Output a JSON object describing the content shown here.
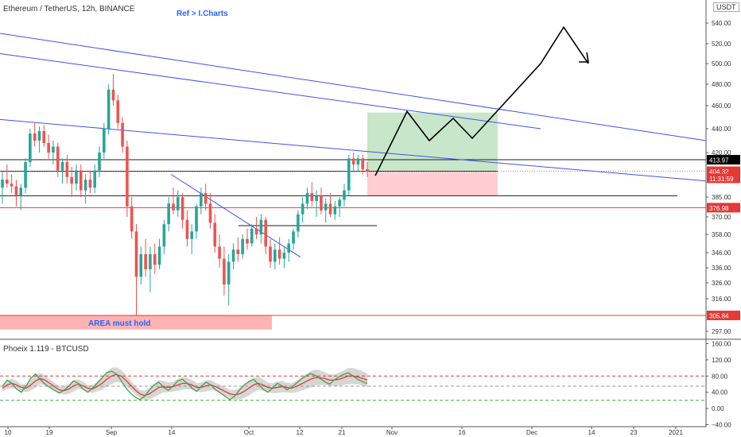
{
  "header": {
    "symbol_title": "Ethereum / TetherUS, 12h, BINANCE",
    "ref_label": "Ref > I.Charts",
    "currency_badge": "USDT"
  },
  "indicator": {
    "title": "Phoeix 1.119 - BTCUSD"
  },
  "colors": {
    "up": "#26a69a",
    "down": "#ef5350",
    "trend": "#3f51f5",
    "hline": "#1e1e1e",
    "red_line": "#e53935",
    "projection": "#000000",
    "target_zone": "#c8e6c9",
    "stop_zone": "#ffcdd2",
    "area_zone": "#ffb3b3",
    "osc_fast": "#43a047",
    "osc_slow": "#e53935",
    "osc_band": "#c8c8c8"
  },
  "chart_data": {
    "type": "candlestick",
    "price_axis": {
      "ticks": [
        540,
        520,
        500,
        480,
        460,
        440,
        420,
        385,
        370,
        358,
        346,
        336,
        326,
        316,
        297
      ],
      "tick_labels": [
        "540.00",
        "520.00",
        "500.00",
        "480.00",
        "460.00",
        "440.00",
        "420.00",
        "385.00",
        "370.00",
        "358.00",
        "346.00",
        "336.00",
        "326.00",
        "316.00",
        "297.00"
      ]
    },
    "time_axis": {
      "labels": [
        "10",
        "19",
        "Sep",
        "14",
        "Oct",
        "12",
        "21",
        "Nov",
        "16",
        "Dec",
        "14",
        "23",
        "2021"
      ]
    },
    "price_badges": [
      {
        "label": "413.97",
        "price": 413.97,
        "style": "black"
      },
      {
        "label": "404.32",
        "price": 404.32,
        "style": "red"
      },
      {
        "label": "11:31:59",
        "price": 399,
        "style": "red"
      },
      {
        "label": "376.98",
        "price": 376.98,
        "style": "red"
      },
      {
        "label": "305.84",
        "price": 305.84,
        "style": "red"
      }
    ],
    "zones": [
      {
        "name": "target",
        "price_top": 454,
        "price_bottom": 404
      },
      {
        "name": "stop",
        "price_top": 404,
        "price_bottom": 386
      },
      {
        "name": "area",
        "price_top": 305.84,
        "price_bottom": 298,
        "label": "AREA must hold"
      }
    ],
    "horizontal_levels": [
      {
        "price": 413.97,
        "color": "black"
      },
      {
        "price": 404.32,
        "color": "black"
      },
      {
        "price": 386,
        "color": "black"
      },
      {
        "price": 376.98,
        "color": "red"
      },
      {
        "price": 364,
        "color": "black"
      },
      {
        "price": 305.84,
        "color": "red"
      }
    ],
    "projection_path_prices": [
      401,
      455,
      430,
      449,
      432,
      500,
      536,
      500
    ],
    "candles": [
      {
        "o": 392,
        "h": 404,
        "l": 380,
        "c": 398
      },
      {
        "o": 398,
        "h": 410,
        "l": 392,
        "c": 395
      },
      {
        "o": 395,
        "h": 402,
        "l": 388,
        "c": 393
      },
      {
        "o": 393,
        "h": 398,
        "l": 378,
        "c": 386
      },
      {
        "o": 386,
        "h": 395,
        "l": 375,
        "c": 392
      },
      {
        "o": 392,
        "h": 415,
        "l": 388,
        "c": 412
      },
      {
        "o": 412,
        "h": 440,
        "l": 408,
        "c": 436
      },
      {
        "o": 436,
        "h": 445,
        "l": 425,
        "c": 430
      },
      {
        "o": 430,
        "h": 442,
        "l": 420,
        "c": 438
      },
      {
        "o": 438,
        "h": 443,
        "l": 425,
        "c": 428
      },
      {
        "o": 428,
        "h": 435,
        "l": 415,
        "c": 420
      },
      {
        "o": 420,
        "h": 430,
        "l": 410,
        "c": 425
      },
      {
        "o": 425,
        "h": 428,
        "l": 400,
        "c": 405
      },
      {
        "o": 405,
        "h": 415,
        "l": 395,
        "c": 412
      },
      {
        "o": 412,
        "h": 418,
        "l": 395,
        "c": 400
      },
      {
        "o": 400,
        "h": 408,
        "l": 385,
        "c": 395
      },
      {
        "o": 395,
        "h": 410,
        "l": 390,
        "c": 405
      },
      {
        "o": 405,
        "h": 410,
        "l": 385,
        "c": 390
      },
      {
        "o": 390,
        "h": 402,
        "l": 380,
        "c": 398
      },
      {
        "o": 398,
        "h": 405,
        "l": 388,
        "c": 392
      },
      {
        "o": 392,
        "h": 410,
        "l": 388,
        "c": 405
      },
      {
        "o": 405,
        "h": 425,
        "l": 400,
        "c": 420
      },
      {
        "o": 420,
        "h": 445,
        "l": 415,
        "c": 440
      },
      {
        "o": 440,
        "h": 480,
        "l": 435,
        "c": 475
      },
      {
        "o": 475,
        "h": 490,
        "l": 460,
        "c": 465
      },
      {
        "o": 465,
        "h": 470,
        "l": 440,
        "c": 445
      },
      {
        "o": 445,
        "h": 450,
        "l": 420,
        "c": 425
      },
      {
        "o": 425,
        "h": 430,
        "l": 370,
        "c": 378
      },
      {
        "o": 378,
        "h": 385,
        "l": 355,
        "c": 360
      },
      {
        "o": 360,
        "h": 365,
        "l": 306,
        "c": 330
      },
      {
        "o": 330,
        "h": 350,
        "l": 325,
        "c": 345
      },
      {
        "o": 345,
        "h": 355,
        "l": 330,
        "c": 335
      },
      {
        "o": 335,
        "h": 350,
        "l": 320,
        "c": 345
      },
      {
        "o": 345,
        "h": 352,
        "l": 332,
        "c": 338
      },
      {
        "o": 338,
        "h": 355,
        "l": 335,
        "c": 350
      },
      {
        "o": 350,
        "h": 368,
        "l": 345,
        "c": 365
      },
      {
        "o": 365,
        "h": 385,
        "l": 360,
        "c": 380
      },
      {
        "o": 380,
        "h": 392,
        "l": 372,
        "c": 375
      },
      {
        "o": 375,
        "h": 390,
        "l": 370,
        "c": 385
      },
      {
        "o": 385,
        "h": 388,
        "l": 362,
        "c": 368
      },
      {
        "o": 368,
        "h": 375,
        "l": 350,
        "c": 355
      },
      {
        "o": 355,
        "h": 365,
        "l": 345,
        "c": 360
      },
      {
        "o": 360,
        "h": 380,
        "l": 355,
        "c": 378
      },
      {
        "o": 378,
        "h": 392,
        "l": 372,
        "c": 388
      },
      {
        "o": 388,
        "h": 395,
        "l": 375,
        "c": 380
      },
      {
        "o": 380,
        "h": 388,
        "l": 362,
        "c": 366
      },
      {
        "o": 366,
        "h": 372,
        "l": 346,
        "c": 350
      },
      {
        "o": 350,
        "h": 358,
        "l": 336,
        "c": 342
      },
      {
        "o": 342,
        "h": 350,
        "l": 318,
        "c": 325
      },
      {
        "o": 325,
        "h": 345,
        "l": 312,
        "c": 340
      },
      {
        "o": 340,
        "h": 352,
        "l": 335,
        "c": 348
      },
      {
        "o": 348,
        "h": 356,
        "l": 340,
        "c": 345
      },
      {
        "o": 345,
        "h": 358,
        "l": 342,
        "c": 355
      },
      {
        "o": 355,
        "h": 362,
        "l": 348,
        "c": 352
      },
      {
        "o": 352,
        "h": 365,
        "l": 350,
        "c": 362
      },
      {
        "o": 362,
        "h": 370,
        "l": 355,
        "c": 358
      },
      {
        "o": 358,
        "h": 372,
        "l": 352,
        "c": 368
      },
      {
        "o": 368,
        "h": 370,
        "l": 345,
        "c": 350
      },
      {
        "o": 350,
        "h": 355,
        "l": 336,
        "c": 340
      },
      {
        "o": 340,
        "h": 352,
        "l": 335,
        "c": 348
      },
      {
        "o": 348,
        "h": 356,
        "l": 338,
        "c": 342
      },
      {
        "o": 342,
        "h": 350,
        "l": 336,
        "c": 346
      },
      {
        "o": 346,
        "h": 355,
        "l": 340,
        "c": 352
      },
      {
        "o": 352,
        "h": 362,
        "l": 348,
        "c": 360
      },
      {
        "o": 360,
        "h": 375,
        "l": 356,
        "c": 372
      },
      {
        "o": 372,
        "h": 385,
        "l": 366,
        "c": 380
      },
      {
        "o": 380,
        "h": 392,
        "l": 376,
        "c": 388
      },
      {
        "o": 388,
        "h": 396,
        "l": 378,
        "c": 382
      },
      {
        "o": 382,
        "h": 390,
        "l": 370,
        "c": 386
      },
      {
        "o": 386,
        "h": 392,
        "l": 372,
        "c": 375
      },
      {
        "o": 375,
        "h": 384,
        "l": 366,
        "c": 380
      },
      {
        "o": 380,
        "h": 388,
        "l": 370,
        "c": 372
      },
      {
        "o": 372,
        "h": 382,
        "l": 368,
        "c": 378
      },
      {
        "o": 378,
        "h": 385,
        "l": 370,
        "c": 383
      },
      {
        "o": 383,
        "h": 395,
        "l": 378,
        "c": 390
      },
      {
        "o": 390,
        "h": 418,
        "l": 386,
        "c": 415
      },
      {
        "o": 415,
        "h": 420,
        "l": 405,
        "c": 410
      },
      {
        "o": 410,
        "h": 418,
        "l": 404,
        "c": 415
      },
      {
        "o": 415,
        "h": 418,
        "l": 402,
        "c": 406
      },
      {
        "o": 406,
        "h": 412,
        "l": 400,
        "c": 404
      }
    ],
    "oscillator": {
      "axis_ticks": [
        160,
        120,
        80,
        40,
        0,
        -40
      ],
      "tick_labels": [
        "160.00",
        "120.00",
        "80.00",
        "40.00",
        "0.00",
        "−40.00"
      ],
      "y_range": [
        -45,
        165
      ],
      "dashed_levels": [
        {
          "value": 80,
          "color": "red"
        },
        {
          "value": 20,
          "color": "green"
        },
        {
          "value": 55,
          "color": "gray"
        }
      ],
      "fast": [
        55,
        70,
        62,
        48,
        40,
        55,
        75,
        85,
        72,
        60,
        52,
        45,
        38,
        45,
        55,
        68,
        62,
        48,
        40,
        50,
        62,
        75,
        88,
        92,
        86,
        70,
        52,
        38,
        28,
        22,
        30,
        45,
        58,
        65,
        52,
        45,
        55,
        68,
        72,
        62,
        50,
        42,
        55,
        65,
        58,
        46,
        38,
        30,
        22,
        30,
        45,
        58,
        66,
        72,
        60,
        48,
        40,
        50,
        62,
        56,
        46,
        52,
        62,
        72,
        80,
        86,
        82,
        74,
        66,
        60,
        70,
        78,
        84,
        88,
        80,
        72,
        66,
        62
      ],
      "slow": [
        50,
        58,
        62,
        58,
        52,
        50,
        58,
        68,
        74,
        70,
        62,
        54,
        46,
        44,
        48,
        56,
        60,
        56,
        50,
        48,
        54,
        62,
        72,
        80,
        84,
        80,
        70,
        58,
        46,
        36,
        32,
        36,
        44,
        52,
        54,
        52,
        54,
        58,
        62,
        62,
        58,
        52,
        52,
        56,
        58,
        54,
        48,
        42,
        36,
        34,
        36,
        42,
        50,
        58,
        62,
        58,
        52,
        50,
        52,
        54,
        52,
        50,
        54,
        60,
        66,
        72,
        76,
        76,
        74,
        70,
        70,
        72,
        76,
        80,
        80,
        78,
        74,
        70
      ],
      "band_halfwidth": [
        8,
        10,
        12,
        10,
        8,
        10,
        14,
        16,
        14,
        12,
        10,
        10,
        8,
        10,
        12,
        14,
        12,
        10,
        8,
        10,
        12,
        16,
        18,
        20,
        18,
        16,
        14,
        12,
        10,
        10,
        12,
        14,
        16,
        18,
        14,
        12,
        12,
        14,
        16,
        14,
        12,
        10,
        12,
        14,
        12,
        10,
        10,
        10,
        10,
        12,
        14,
        16,
        18,
        18,
        16,
        14,
        12,
        12,
        14,
        14,
        12,
        12,
        14,
        16,
        18,
        20,
        20,
        18,
        16,
        14,
        14,
        16,
        18,
        20,
        20,
        18,
        18,
        16
      ]
    }
  }
}
